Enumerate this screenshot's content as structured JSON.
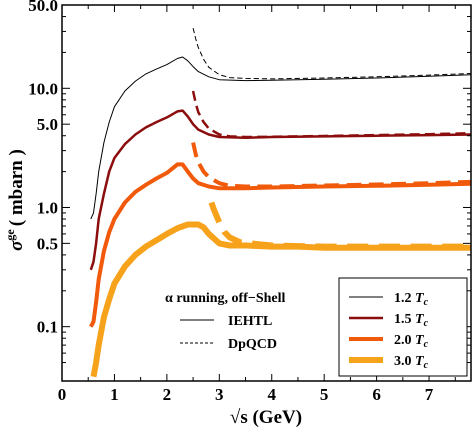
{
  "chart_data": {
    "type": "line",
    "xlabel": "√s (GeV)",
    "ylabel_main": "σ",
    "ylabel_sup": "ge",
    "ylabel_unit": "( mbarn )",
    "xlim": [
      0,
      7.8
    ],
    "ylim": [
      0.035,
      50
    ],
    "yscale": "log",
    "x_ticks": [
      "0",
      "1",
      "2",
      "3",
      "4",
      "5",
      "6",
      "7"
    ],
    "y_ticks": [
      {
        "value": 50,
        "label": "50.0"
      },
      {
        "value": 10,
        "label": "10.0"
      },
      {
        "value": 5,
        "label": "5.0"
      },
      {
        "value": 1,
        "label": "1.0"
      },
      {
        "value": 0.5,
        "label": "0.5"
      },
      {
        "value": 0.1,
        "label": "0.1"
      }
    ],
    "legend_style": {
      "title": "α running, off−Shell",
      "items": [
        {
          "label": "IEHTL",
          "dash": "solid"
        },
        {
          "label": "DpQCD",
          "dash": "dashed"
        }
      ],
      "placement": "bottom-center"
    },
    "legend_temp": {
      "items": [
        {
          "label": "1.2",
          "unit": "T",
          "sub": "c",
          "color": "#000000",
          "width": 1
        },
        {
          "label": "1.5",
          "unit": "T",
          "sub": "c",
          "color": "#8b0d0d",
          "width": 2.5
        },
        {
          "label": "2.0",
          "unit": "T",
          "sub": "c",
          "color": "#f05a0a",
          "width": 4
        },
        {
          "label": "3.0",
          "unit": "T",
          "sub": "c",
          "color": "#f7a21b",
          "width": 6
        }
      ],
      "placement": "bottom-right"
    },
    "series": [
      {
        "color": "#000000",
        "width": 1,
        "dash": "solid",
        "x": [
          0.55,
          0.6,
          0.65,
          0.7,
          0.8,
          0.9,
          1.0,
          1.2,
          1.4,
          1.6,
          1.8,
          2.0,
          2.2,
          2.3,
          2.4,
          2.5,
          2.6,
          2.8,
          3.0,
          3.5,
          4,
          5,
          6,
          7,
          7.8
        ],
        "y": [
          0.8,
          0.9,
          1.3,
          2.0,
          3.5,
          5.2,
          7.0,
          9.5,
          11.5,
          13.2,
          14.5,
          15.8,
          17.8,
          18.3,
          17.0,
          15.2,
          13.8,
          12.5,
          11.8,
          11.6,
          11.7,
          11.9,
          12.2,
          12.6,
          13.0
        ]
      },
      {
        "color": "#000000",
        "width": 1,
        "dash": "dashed",
        "x": [
          2.5,
          2.55,
          2.6,
          2.7,
          2.8,
          3.0,
          3.2,
          3.5,
          4,
          5,
          6,
          7,
          7.8
        ],
        "y": [
          32,
          26,
          22,
          17.5,
          15,
          13,
          12.3,
          12.1,
          12.0,
          12.2,
          12.5,
          12.9,
          13.3
        ]
      },
      {
        "color": "#8b0d0d",
        "width": 2.5,
        "dash": "solid",
        "x": [
          0.55,
          0.6,
          0.65,
          0.7,
          0.8,
          0.9,
          1.0,
          1.2,
          1.4,
          1.6,
          1.8,
          2.0,
          2.2,
          2.3,
          2.4,
          2.5,
          2.6,
          2.8,
          3.0,
          3.5,
          4,
          5,
          6,
          7,
          7.8
        ],
        "y": [
          0.3,
          0.35,
          0.5,
          0.8,
          1.3,
          2.0,
          2.6,
          3.4,
          4.1,
          4.7,
          5.2,
          5.7,
          6.4,
          6.5,
          5.8,
          5.0,
          4.5,
          4.1,
          3.9,
          3.85,
          3.9,
          3.95,
          4.0,
          4.05,
          4.1
        ]
      },
      {
        "color": "#8b0d0d",
        "width": 2.5,
        "dash": "dashed",
        "x": [
          2.5,
          2.55,
          2.6,
          2.7,
          2.8,
          3.0,
          3.2,
          3.5,
          4,
          5,
          6,
          7,
          7.8
        ],
        "y": [
          9.5,
          7.5,
          6.3,
          5.2,
          4.6,
          4.1,
          3.95,
          3.9,
          3.92,
          3.98,
          4.05,
          4.12,
          4.2
        ]
      },
      {
        "color": "#f05a0a",
        "width": 4,
        "dash": "solid",
        "x": [
          0.55,
          0.6,
          0.65,
          0.7,
          0.8,
          0.9,
          1.0,
          1.2,
          1.4,
          1.6,
          1.8,
          2.0,
          2.2,
          2.3,
          2.4,
          2.5,
          2.6,
          2.8,
          3.0,
          3.5,
          4,
          5,
          6,
          7,
          7.8
        ],
        "y": [
          0.1,
          0.11,
          0.16,
          0.25,
          0.43,
          0.62,
          0.8,
          1.1,
          1.35,
          1.55,
          1.75,
          1.95,
          2.3,
          2.3,
          2.0,
          1.75,
          1.6,
          1.5,
          1.45,
          1.45,
          1.47,
          1.5,
          1.52,
          1.55,
          1.58
        ]
      },
      {
        "color": "#f05a0a",
        "width": 4,
        "dash": "dashed",
        "x": [
          2.5,
          2.55,
          2.6,
          2.7,
          2.8,
          3.0,
          3.2,
          3.5,
          4,
          5,
          6,
          7,
          7.8
        ],
        "y": [
          3.5,
          2.8,
          2.4,
          2.0,
          1.8,
          1.6,
          1.52,
          1.5,
          1.5,
          1.53,
          1.56,
          1.6,
          1.64
        ]
      },
      {
        "color": "#f7a21b",
        "width": 6,
        "dash": "solid",
        "x": [
          0.6,
          0.65,
          0.7,
          0.8,
          0.9,
          1.0,
          1.2,
          1.4,
          1.6,
          1.8,
          2.0,
          2.2,
          2.4,
          2.6,
          2.7,
          2.8,
          3.0,
          3.2,
          3.5,
          4,
          4.5,
          5,
          5.5,
          6,
          6.5,
          7,
          7.8
        ],
        "y": [
          0.038,
          0.05,
          0.07,
          0.12,
          0.17,
          0.23,
          0.32,
          0.4,
          0.47,
          0.53,
          0.6,
          0.67,
          0.72,
          0.72,
          0.68,
          0.6,
          0.5,
          0.48,
          0.48,
          0.47,
          0.47,
          0.46,
          0.46,
          0.46,
          0.46,
          0.46,
          0.46
        ]
      },
      {
        "color": "#f7a21b",
        "width": 6,
        "dash": "dashed",
        "x": [
          2.85,
          2.9,
          3.0,
          3.1,
          3.2,
          3.4,
          3.6,
          4,
          5,
          6,
          7,
          7.8
        ],
        "y": [
          1.1,
          0.95,
          0.75,
          0.62,
          0.56,
          0.51,
          0.5,
          0.48,
          0.47,
          0.47,
          0.47,
          0.47
        ]
      }
    ]
  }
}
